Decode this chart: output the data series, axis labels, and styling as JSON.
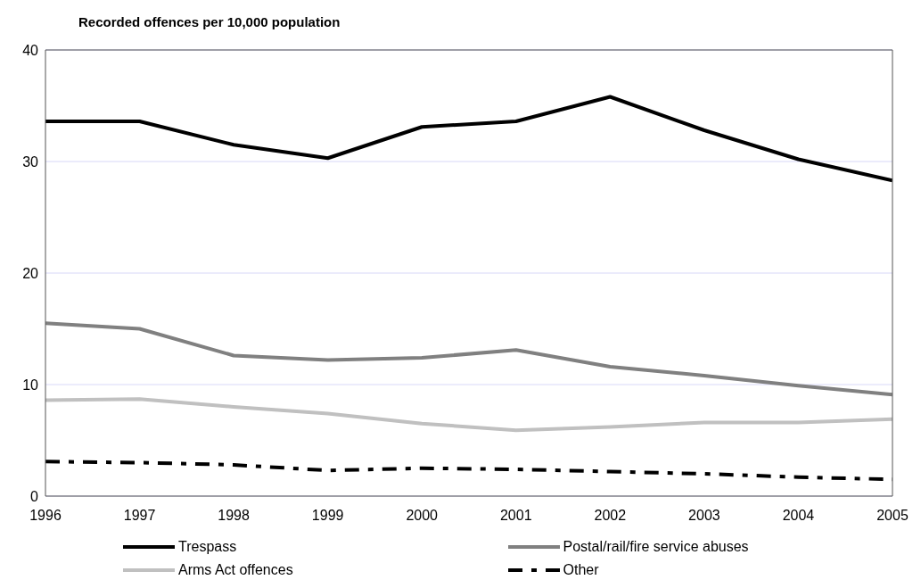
{
  "chart_data": {
    "type": "line",
    "title": "Recorded offences per 10,000 population",
    "x": [
      1996,
      1997,
      1998,
      1999,
      2000,
      2001,
      2002,
      2003,
      2004,
      2005
    ],
    "series": [
      {
        "name": "Trespass",
        "color": "#000000",
        "values": [
          33.6,
          33.6,
          31.5,
          30.3,
          33.1,
          33.6,
          35.8,
          32.8,
          30.2,
          28.3
        ]
      },
      {
        "name": "Postal/rail/fire service abuses",
        "color": "#808080",
        "values": [
          15.5,
          15.0,
          12.6,
          12.2,
          12.4,
          13.1,
          11.6,
          10.8,
          9.9,
          9.1
        ]
      },
      {
        "name": "Arms Act offences",
        "color": "#c0c0c0",
        "values": [
          8.6,
          8.7,
          8.0,
          7.4,
          6.5,
          5.9,
          6.2,
          6.6,
          6.6,
          6.9
        ]
      },
      {
        "name": "Other",
        "color": "#000000",
        "line_style": "dashed",
        "values": [
          3.1,
          3.0,
          2.8,
          2.3,
          2.5,
          2.4,
          2.2,
          2.0,
          1.7,
          1.5
        ]
      }
    ],
    "xlim": [
      1996,
      2005
    ],
    "xticks": [
      1996,
      1997,
      1998,
      1999,
      2000,
      2001,
      2002,
      2003,
      2004,
      2005
    ],
    "ylim": [
      0,
      40
    ],
    "yticks": [
      0,
      10,
      20,
      30,
      40
    ],
    "grid": "y",
    "legend": "bottom",
    "marker": "none",
    "line_style": "solid"
  }
}
